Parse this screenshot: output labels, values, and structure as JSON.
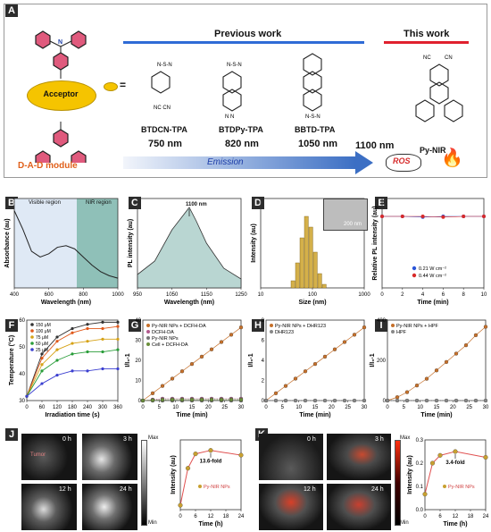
{
  "panelA": {
    "letter": "A",
    "acceptor": "Acceptor",
    "equals": "=",
    "module": "D-A-D module",
    "previous": "Previous work",
    "this": "This work",
    "molecules": [
      {
        "name": "BTDCN-TPA",
        "nm": "750 nm"
      },
      {
        "name": "BTDPy-TPA",
        "nm": "820 nm"
      },
      {
        "name": "BBTD-TPA",
        "nm": "1050 nm"
      }
    ],
    "this_nm": "1100 nm",
    "this_name": "Py-NIR",
    "emission": "Emission",
    "ros": "ROS"
  },
  "panelB": {
    "letter": "B",
    "ylabel": "Absorbance (au)",
    "xlabel": "Wavelength (nm)",
    "visible": "Visible region",
    "nir": "NIR region",
    "ticks": [
      "400",
      "600",
      "800",
      "1000"
    ]
  },
  "panelC": {
    "letter": "C",
    "ylabel": "PL intensity (au)",
    "xlabel": "Wavelength (nm)",
    "peak": "1100 nm",
    "ticks": [
      "950",
      "1050",
      "1150",
      "1250"
    ]
  },
  "panelD": {
    "letter": "D",
    "ylabel": "Intensity (au)",
    "xlabel": "Size (nm)",
    "scale": "200 nm",
    "ticks": [
      "10",
      "100",
      "1000"
    ]
  },
  "panelE": {
    "letter": "E",
    "ylabel": "Relative PL intensity (au)",
    "xlabel": "Time (min)",
    "legend": [
      "0.21 W cm⁻²",
      "0.44 W cm⁻²"
    ],
    "ticks": [
      "0",
      "2",
      "4",
      "6",
      "8",
      "10"
    ]
  },
  "panelF": {
    "letter": "F",
    "ylabel": "Temperature (°C)",
    "xlabel": "Irradiation time (s)",
    "legend": [
      "150 μM",
      "100 μM",
      "75 μM",
      "50 μM",
      "25 μM"
    ],
    "xticks": [
      "0",
      "60",
      "120",
      "180",
      "240",
      "300",
      "360"
    ],
    "yticks": [
      "30",
      "40",
      "50",
      "60"
    ]
  },
  "panelG": {
    "letter": "G",
    "ylabel": "I/I₀-1",
    "xlabel": "Time (min)",
    "legend": [
      "Py-NIR NPs + DCFH-DA",
      "DCFH-DA",
      "Py-NIR NPs",
      "Cell + DCFH-DA"
    ],
    "xticks": [
      "0",
      "5",
      "10",
      "15",
      "20",
      "25",
      "30"
    ],
    "yticks": [
      "0",
      "10",
      "20",
      "30",
      "40"
    ]
  },
  "panelH": {
    "letter": "H",
    "ylabel": "I/I₀-1",
    "xlabel": "Time (min)",
    "legend": [
      "Py-NIR NPs + DHR123",
      "DHR123"
    ],
    "xticks": [
      "0",
      "5",
      "10",
      "15",
      "20",
      "25",
      "30"
    ],
    "yticks": [
      "0",
      "2",
      "4",
      "6",
      "8"
    ]
  },
  "panelI": {
    "letter": "I",
    "ylabel": "I/I₀-1",
    "xlabel": "Time (min)",
    "legend": [
      "Py-NIR NPs + HPF",
      "HPF"
    ],
    "xticks": [
      "0",
      "5",
      "10",
      "15",
      "20",
      "25",
      "30"
    ],
    "yticks": [
      "0",
      "200",
      "400"
    ]
  },
  "panelJ": {
    "letter": "J",
    "times": [
      "0 h",
      "3 h",
      "12 h",
      "24 h"
    ],
    "tumor": "Tumor",
    "max": "Max",
    "min": "Min",
    "ylabel": "Intensity (au)",
    "xlabel": "Time (h)",
    "fold": "13.6-fold",
    "legend": "Py-NIR NPs",
    "xticks": [
      "0",
      "6",
      "12",
      "18",
      "24"
    ]
  },
  "panelK": {
    "letter": "K",
    "times": [
      "0 h",
      "3 h",
      "12 h",
      "24 h"
    ],
    "max": "Max",
    "min": "Min",
    "ylabel": "Intensity (au)",
    "xlabel": "Time (h)",
    "fold": "3.4-fold",
    "legend": "Py-NIR NPs",
    "xticks": [
      "0",
      "6",
      "12",
      "18",
      "24"
    ],
    "yticks": [
      "0.0",
      "0.1",
      "0.2",
      "0.3"
    ]
  },
  "chart_data": [
    {
      "type": "line",
      "panel": "B",
      "x": [
        400,
        450,
        500,
        550,
        600,
        650,
        700,
        750,
        800,
        850,
        900,
        950,
        1000
      ],
      "values": [
        0.95,
        0.72,
        0.45,
        0.38,
        0.42,
        0.5,
        0.52,
        0.48,
        0.38,
        0.28,
        0.2,
        0.15,
        0.12
      ]
    },
    {
      "type": "area",
      "panel": "C",
      "x": [
        950,
        1000,
        1050,
        1080,
        1100,
        1120,
        1150,
        1200,
        1250
      ],
      "values": [
        0.15,
        0.3,
        0.65,
        0.8,
        0.9,
        0.75,
        0.5,
        0.22,
        0.1
      ]
    },
    {
      "type": "bar",
      "panel": "D",
      "categories": [
        "70",
        "80",
        "90",
        "100",
        "110",
        "120",
        "130",
        "140"
      ],
      "values": [
        0.1,
        0.35,
        0.7,
        1.0,
        0.85,
        0.5,
        0.2,
        0.05
      ]
    },
    {
      "type": "scatter",
      "panel": "E",
      "x": [
        0,
        2,
        4,
        6,
        8,
        10
      ],
      "series": [
        {
          "name": "0.21 W cm⁻²",
          "values": [
            1,
            1,
            0.99,
            1,
            1,
            1
          ]
        },
        {
          "name": "0.44 W cm⁻²",
          "values": [
            1,
            1,
            1,
            0.99,
            1,
            1
          ]
        }
      ]
    },
    {
      "type": "line",
      "panel": "F",
      "x": [
        0,
        60,
        120,
        180,
        240,
        300,
        360
      ],
      "series": [
        {
          "name": "150 μM",
          "values": [
            30,
            50,
            58,
            62,
            64,
            65,
            65
          ]
        },
        {
          "name": "100 μM",
          "values": [
            30,
            48,
            56,
            60,
            62,
            62,
            63
          ]
        },
        {
          "name": "75 μM",
          "values": [
            30,
            45,
            52,
            55,
            56,
            57,
            57
          ]
        },
        {
          "name": "50 μM",
          "values": [
            30,
            42,
            47,
            50,
            51,
            51,
            52
          ]
        },
        {
          "name": "25 μM",
          "values": [
            30,
            36,
            40,
            42,
            42,
            43,
            43
          ]
        }
      ]
    },
    {
      "type": "line",
      "panel": "G",
      "x": [
        0,
        3,
        6,
        9,
        12,
        15,
        18,
        21,
        24,
        27,
        30
      ],
      "series": [
        {
          "name": "Py-NIR NPs + DCFH-DA",
          "values": [
            0,
            4,
            8,
            12,
            16,
            20,
            24,
            28,
            32,
            36,
            40
          ]
        },
        {
          "name": "DCFH-DA",
          "values": [
            0,
            0.5,
            1,
            1,
            1,
            1,
            1,
            1,
            1,
            1,
            1
          ]
        },
        {
          "name": "Py-NIR NPs",
          "values": [
            0,
            0,
            0,
            0,
            0,
            0,
            0,
            0,
            0,
            0,
            0
          ]
        },
        {
          "name": "Cell + DCFH-DA",
          "values": [
            0,
            0.2,
            0.4,
            0.5,
            0.5,
            0.5,
            0.5,
            0.5,
            0.5,
            0.5,
            0.5
          ]
        }
      ]
    },
    {
      "type": "line",
      "panel": "H",
      "x": [
        0,
        3,
        6,
        9,
        12,
        15,
        18,
        21,
        24,
        27,
        30
      ],
      "series": [
        {
          "name": "Py-NIR NPs + DHR123",
          "values": [
            0,
            0.8,
            1.6,
            2.4,
            3.2,
            4,
            4.8,
            5.6,
            6.4,
            7.2,
            8
          ]
        },
        {
          "name": "DHR123",
          "values": [
            0,
            0,
            0,
            0,
            0,
            0,
            0,
            0,
            0,
            0,
            0
          ]
        }
      ]
    },
    {
      "type": "line",
      "panel": "I",
      "x": [
        0,
        3,
        6,
        9,
        12,
        15,
        18,
        21,
        24,
        27,
        30
      ],
      "series": [
        {
          "name": "Py-NIR NPs + HPF",
          "values": [
            0,
            20,
            50,
            90,
            130,
            180,
            230,
            280,
            330,
            390,
            440
          ]
        },
        {
          "name": "HPF",
          "values": [
            0,
            0,
            0,
            0,
            0,
            0,
            0,
            0,
            0,
            0,
            0
          ]
        }
      ]
    },
    {
      "type": "line",
      "panel": "J",
      "x": [
        0,
        3,
        6,
        12,
        24
      ],
      "series": [
        {
          "name": "Py-NIR NPs",
          "values": [
            1,
            9.5,
            12.8,
            13.6,
            12.5
          ]
        }
      ]
    },
    {
      "type": "line",
      "panel": "K",
      "x": [
        0,
        3,
        6,
        12,
        24
      ],
      "series": [
        {
          "name": "Py-NIR NPs",
          "values": [
            0.08,
            0.24,
            0.28,
            0.3,
            0.27
          ]
        }
      ]
    }
  ]
}
